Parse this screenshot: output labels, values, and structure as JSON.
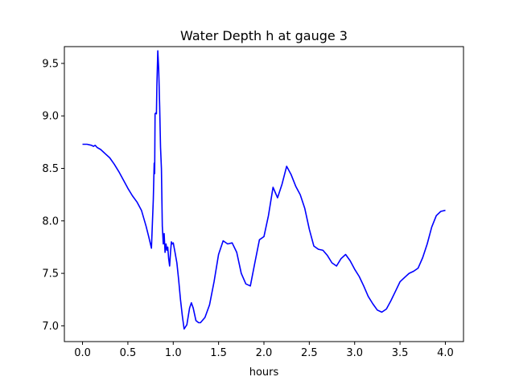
{
  "chart_data": {
    "type": "line",
    "title": "Water Depth h at gauge 3",
    "xlabel": "hours",
    "ylabel": "",
    "xlim": [
      -0.2,
      4.2
    ],
    "ylim": [
      6.85,
      9.66
    ],
    "xticks": [
      0.0,
      0.5,
      1.0,
      1.5,
      2.0,
      2.5,
      3.0,
      3.5,
      4.0
    ],
    "xtick_labels": [
      "0.0",
      "0.5",
      "1.0",
      "1.5",
      "2.0",
      "2.5",
      "3.0",
      "3.5",
      "4.0"
    ],
    "yticks": [
      7.0,
      7.5,
      8.0,
      8.5,
      9.0,
      9.5
    ],
    "ytick_labels": [
      "7.0",
      "7.5",
      "8.0",
      "8.5",
      "9.0",
      "9.5"
    ],
    "grid": false,
    "series": [
      {
        "color": "#0000ff",
        "x": [
          0.0,
          0.05,
          0.1,
          0.12,
          0.14,
          0.16,
          0.2,
          0.25,
          0.3,
          0.35,
          0.4,
          0.45,
          0.5,
          0.55,
          0.6,
          0.65,
          0.7,
          0.73,
          0.76,
          0.78,
          0.79,
          0.795,
          0.8,
          0.81,
          0.815,
          0.82,
          0.83,
          0.84,
          0.85,
          0.86,
          0.87,
          0.88,
          0.89,
          0.9,
          0.91,
          0.92,
          0.93,
          0.94,
          0.95,
          0.96,
          0.97,
          0.98,
          0.99,
          1.0,
          1.02,
          1.04,
          1.06,
          1.08,
          1.1,
          1.12,
          1.15,
          1.18,
          1.2,
          1.22,
          1.25,
          1.28,
          1.3,
          1.35,
          1.4,
          1.45,
          1.5,
          1.55,
          1.6,
          1.65,
          1.7,
          1.75,
          1.8,
          1.85,
          1.9,
          1.95,
          2.0,
          2.05,
          2.1,
          2.15,
          2.2,
          2.25,
          2.3,
          2.35,
          2.4,
          2.45,
          2.5,
          2.55,
          2.6,
          2.65,
          2.7,
          2.75,
          2.8,
          2.85,
          2.9,
          2.95,
          3.0,
          3.05,
          3.1,
          3.15,
          3.2,
          3.25,
          3.3,
          3.35,
          3.4,
          3.45,
          3.5,
          3.55,
          3.6,
          3.65,
          3.7,
          3.75,
          3.8,
          3.85,
          3.9,
          3.95,
          4.0
        ],
        "y": [
          8.73,
          8.73,
          8.72,
          8.71,
          8.72,
          8.7,
          8.68,
          8.64,
          8.6,
          8.54,
          8.47,
          8.39,
          8.31,
          8.24,
          8.18,
          8.1,
          7.95,
          7.85,
          7.74,
          8.2,
          8.55,
          8.45,
          9.02,
          9.03,
          9.02,
          9.3,
          9.62,
          9.45,
          9.1,
          8.7,
          8.5,
          7.95,
          7.78,
          7.88,
          7.7,
          7.78,
          7.72,
          7.75,
          7.64,
          7.57,
          7.7,
          7.8,
          7.78,
          7.79,
          7.7,
          7.6,
          7.44,
          7.25,
          7.1,
          6.97,
          7.01,
          7.17,
          7.22,
          7.17,
          7.05,
          7.03,
          7.03,
          7.08,
          7.2,
          7.42,
          7.68,
          7.81,
          7.78,
          7.79,
          7.7,
          7.5,
          7.4,
          7.38,
          7.6,
          7.82,
          7.85,
          8.05,
          8.32,
          8.22,
          8.35,
          8.52,
          8.44,
          8.33,
          8.25,
          8.12,
          7.92,
          7.76,
          7.73,
          7.72,
          7.67,
          7.6,
          7.57,
          7.64,
          7.68,
          7.62,
          7.54,
          7.47,
          7.38,
          7.28,
          7.21,
          7.15,
          7.13,
          7.16,
          7.24,
          7.33,
          7.42,
          7.46,
          7.5,
          7.52,
          7.55,
          7.65,
          7.78,
          7.94,
          8.05,
          8.09,
          8.1
        ]
      }
    ]
  }
}
